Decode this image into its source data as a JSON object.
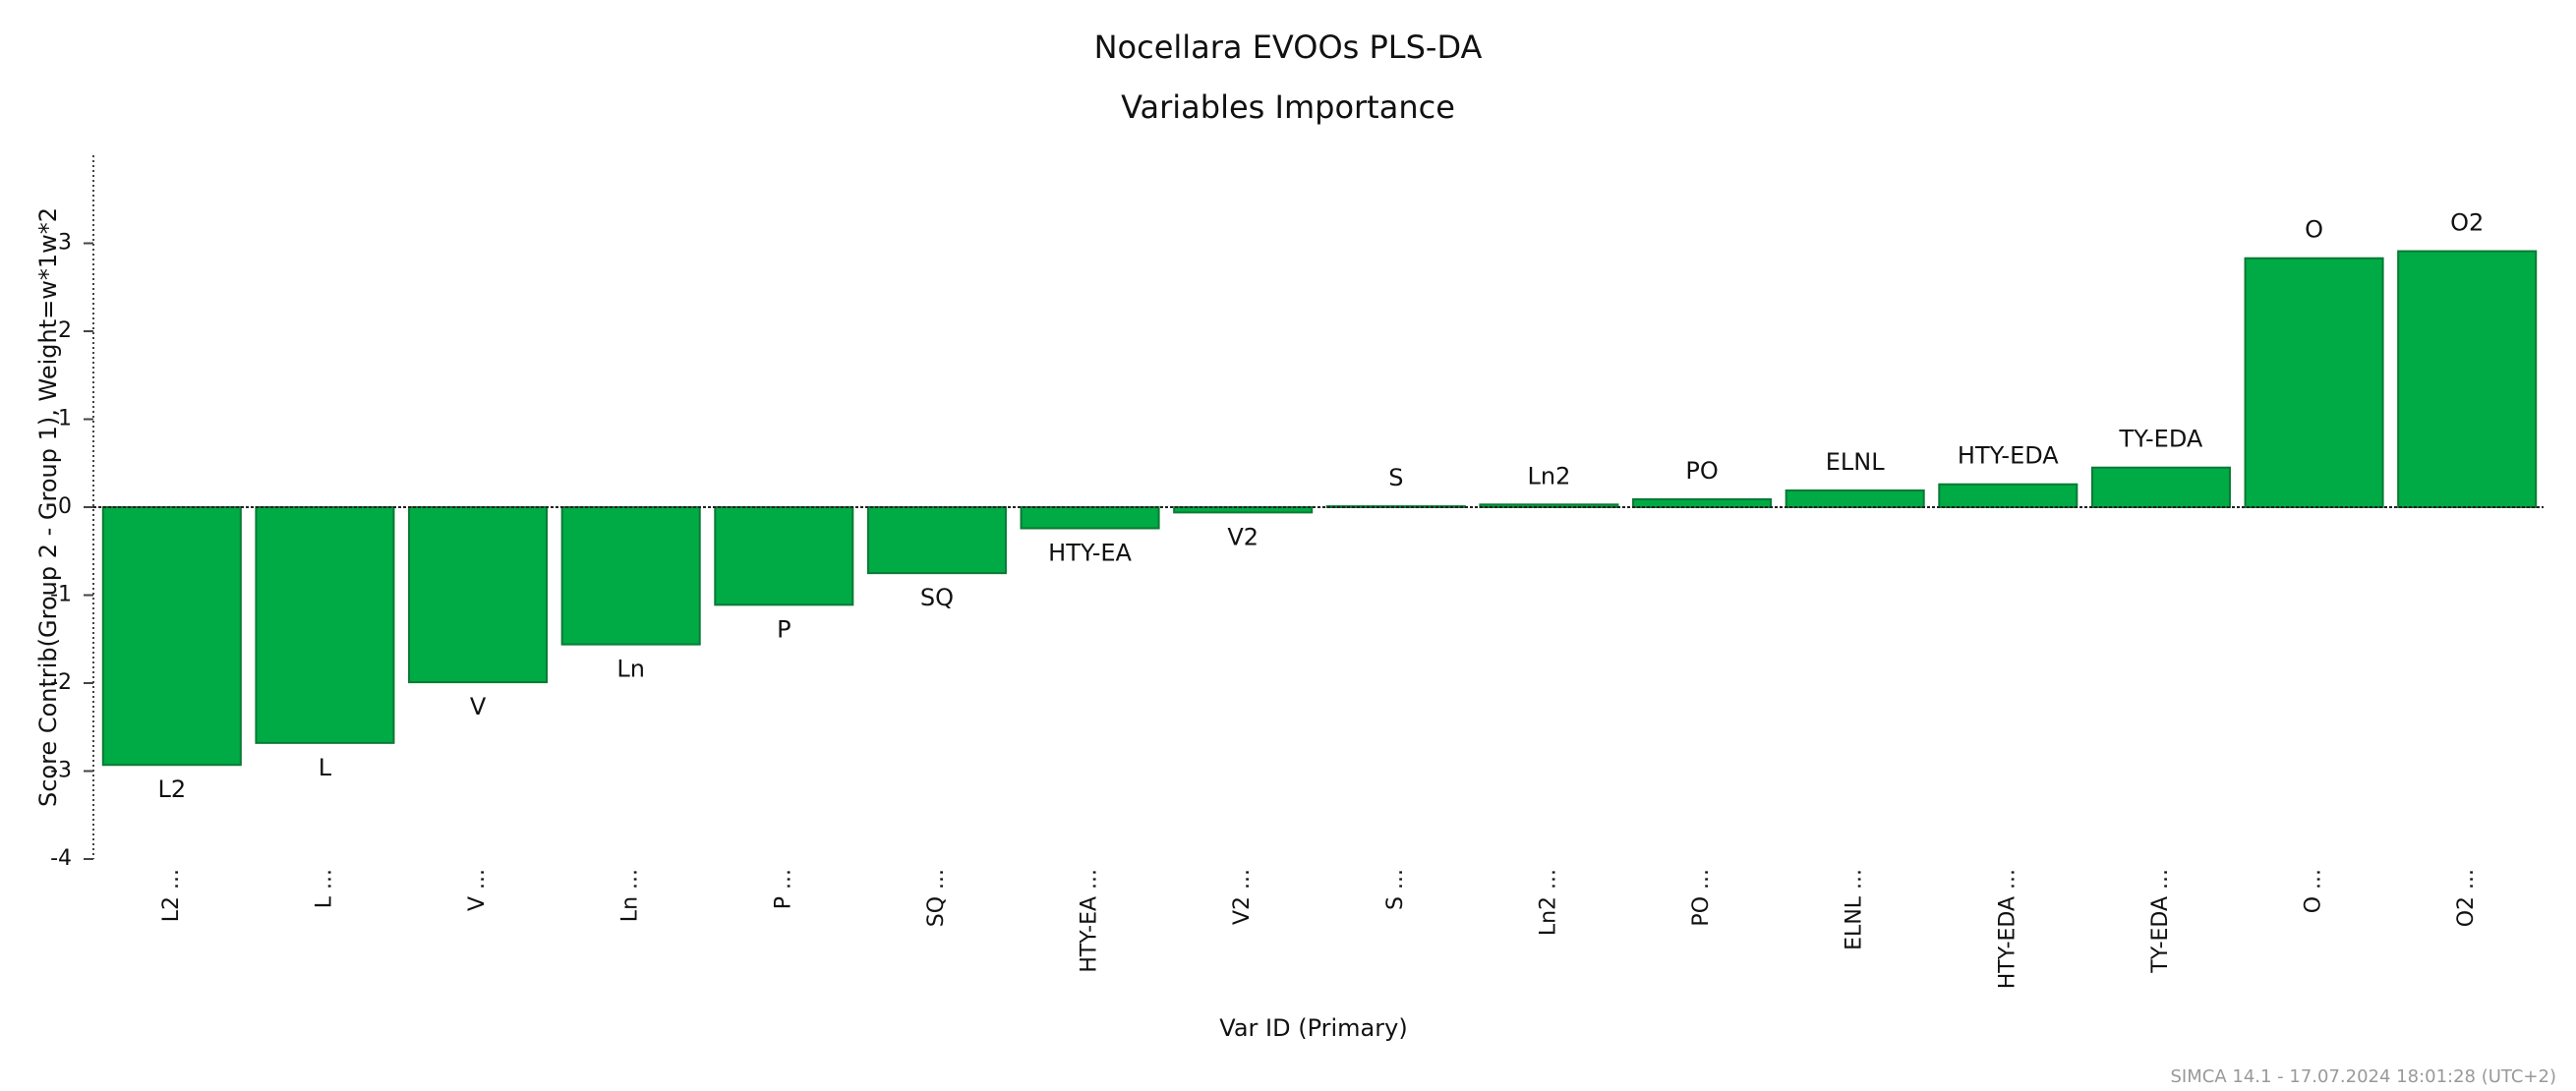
{
  "chart_data": {
    "type": "bar",
    "title": "Nocellara EVOOs PLS-DA",
    "subtitle": "Variables Importance",
    "x_label": "Var ID (Primary)",
    "y_label": "Score Contrib(Group 2 - Group 1), Weight=w*1w*2",
    "footer": "SIMCA 14.1 - 17.07.2024 18:01:28 (UTC+2)",
    "categories": [
      "L2",
      "L",
      "V",
      "Ln",
      "P",
      "SQ",
      "HTY-EA",
      "V2",
      "S",
      "Ln2",
      "PO",
      "ELNL",
      "HTY-EDA",
      "TY-EDA",
      "O",
      "O2"
    ],
    "x_tick_labels": [
      "L2 ...",
      "L ...",
      "V ...",
      "Ln ...",
      "P ...",
      "SQ ...",
      "HTY-EA ...",
      "V2 ...",
      "S ...",
      "Ln2 ...",
      "PO ...",
      "ELNL ...",
      "HTY-EDA ...",
      "TY-EDA ...",
      "O ...",
      "O2 ..."
    ],
    "values": [
      -2.93,
      -2.68,
      -1.99,
      -1.56,
      -1.11,
      -0.75,
      -0.24,
      -0.06,
      0.01,
      0.03,
      0.09,
      0.19,
      0.26,
      0.45,
      2.83,
      2.91
    ],
    "color": "#00aa44",
    "ylim": [
      -4,
      4
    ],
    "yticks": [
      -4,
      -3,
      -2,
      -1,
      0,
      1,
      2,
      3
    ]
  }
}
